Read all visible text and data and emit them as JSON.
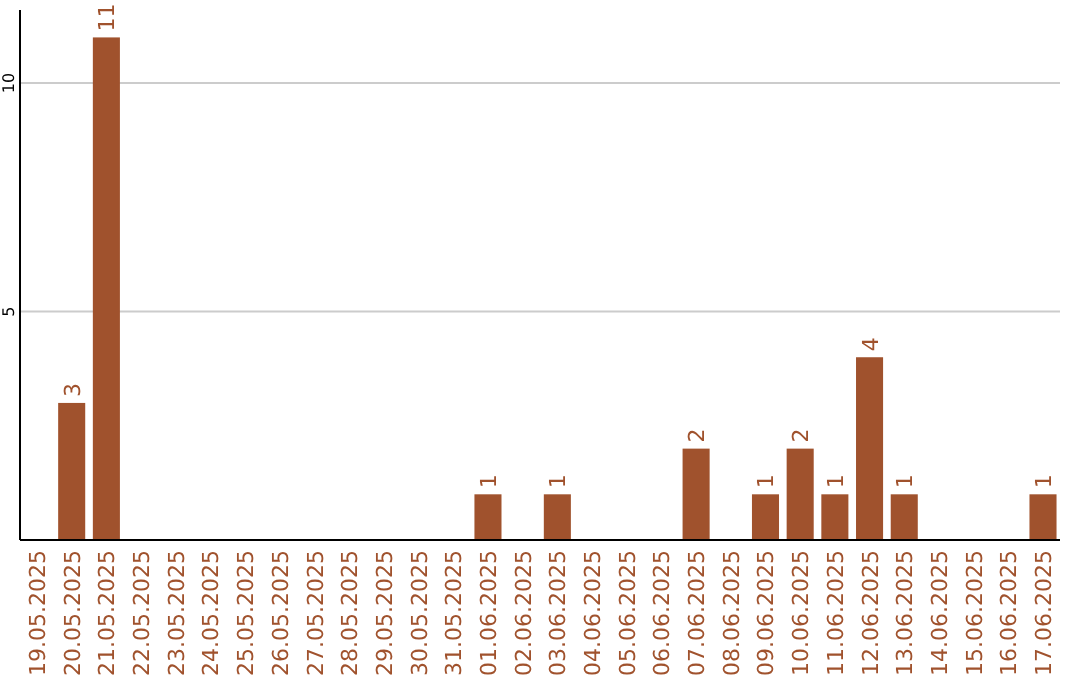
{
  "chart_data": {
    "type": "bar",
    "categories": [
      "19.05.2025",
      "20.05.2025",
      "21.05.2025",
      "22.05.2025",
      "23.05.2025",
      "24.05.2025",
      "25.05.2025",
      "26.05.2025",
      "27.05.2025",
      "28.05.2025",
      "29.05.2025",
      "30.05.2025",
      "31.05.2025",
      "01.06.2025",
      "02.06.2025",
      "03.06.2025",
      "04.06.2025",
      "05.06.2025",
      "06.06.2025",
      "07.06.2025",
      "08.06.2025",
      "09.06.2025",
      "10.06.2025",
      "11.06.2025",
      "12.06.2025",
      "13.06.2025",
      "14.06.2025",
      "15.06.2025",
      "16.06.2025",
      "17.06.2025"
    ],
    "values": [
      0,
      3,
      11,
      0,
      0,
      0,
      0,
      0,
      0,
      0,
      0,
      0,
      0,
      1,
      0,
      1,
      0,
      0,
      0,
      2,
      0,
      1,
      2,
      1,
      4,
      1,
      0,
      0,
      0,
      1
    ],
    "value_labels": [
      null,
      "3",
      "11",
      null,
      null,
      null,
      null,
      null,
      null,
      null,
      null,
      null,
      null,
      "1",
      null,
      "1",
      null,
      null,
      null,
      "2",
      null,
      "1",
      "2",
      "1",
      "4",
      "1",
      null,
      null,
      null,
      "1"
    ],
    "color": "#a0522d",
    "ylim": [
      0,
      11.6
    ],
    "yticks": [
      5,
      10
    ],
    "grid": "y"
  }
}
